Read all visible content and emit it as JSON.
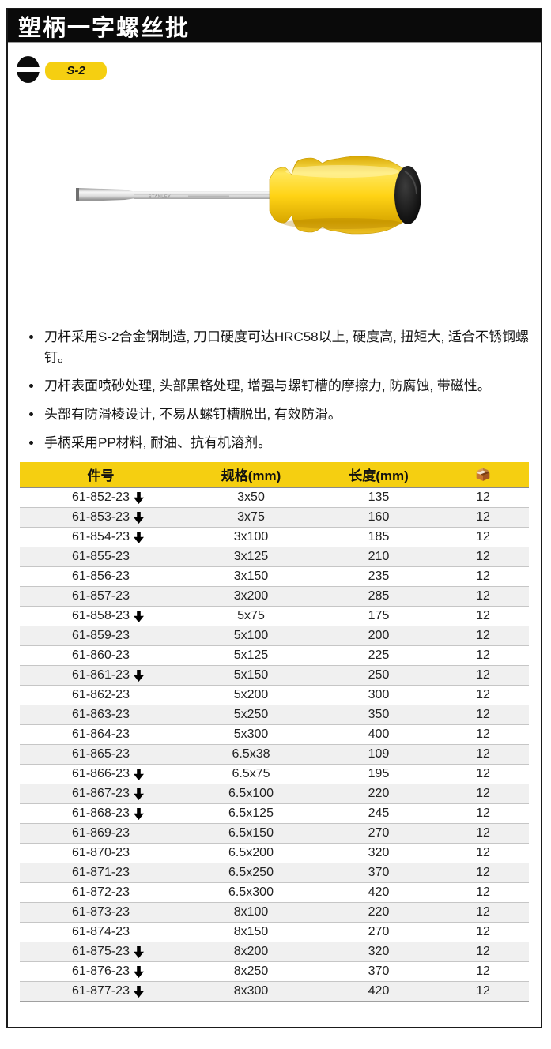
{
  "header": {
    "title": "塑柄一字螺丝批"
  },
  "badges": {
    "tip_icon": "slotted-tip-icon",
    "steel_grade": "S-2"
  },
  "product": {
    "shaft_marking": "STANLEY"
  },
  "features": [
    "刀杆采用S-2合金钢制造, 刀口硬度可达HRC58以上, 硬度高, 扭矩大, 适合不锈钢螺钉。",
    "刀杆表面喷砂处理, 头部黑铬处理, 增强与螺钉槽的摩擦力, 防腐蚀, 带磁性。",
    "头部有防滑棱设计, 不易从螺钉槽脱出, 有效防滑。",
    "手柄采用PP材料, 耐油、抗有机溶剂。"
  ],
  "table": {
    "headers": [
      "件号",
      "规格(mm)",
      "长度(mm)",
      "carton-qty-icon"
    ],
    "rows": [
      {
        "part": "61-852-23",
        "is_new": true,
        "spec": "3x50",
        "length": "135",
        "qty": "12"
      },
      {
        "part": "61-853-23",
        "is_new": true,
        "spec": "3x75",
        "length": "160",
        "qty": "12"
      },
      {
        "part": "61-854-23",
        "is_new": true,
        "spec": "3x100",
        "length": "185",
        "qty": "12"
      },
      {
        "part": "61-855-23",
        "is_new": false,
        "spec": "3x125",
        "length": "210",
        "qty": "12"
      },
      {
        "part": "61-856-23",
        "is_new": false,
        "spec": "3x150",
        "length": "235",
        "qty": "12"
      },
      {
        "part": "61-857-23",
        "is_new": false,
        "spec": "3x200",
        "length": "285",
        "qty": "12"
      },
      {
        "part": "61-858-23",
        "is_new": true,
        "spec": "5x75",
        "length": "175",
        "qty": "12"
      },
      {
        "part": "61-859-23",
        "is_new": false,
        "spec": "5x100",
        "length": "200",
        "qty": "12"
      },
      {
        "part": "61-860-23",
        "is_new": false,
        "spec": "5x125",
        "length": "225",
        "qty": "12"
      },
      {
        "part": "61-861-23",
        "is_new": true,
        "spec": "5x150",
        "length": "250",
        "qty": "12"
      },
      {
        "part": "61-862-23",
        "is_new": false,
        "spec": "5x200",
        "length": "300",
        "qty": "12"
      },
      {
        "part": "61-863-23",
        "is_new": false,
        "spec": "5x250",
        "length": "350",
        "qty": "12"
      },
      {
        "part": "61-864-23",
        "is_new": false,
        "spec": "5x300",
        "length": "400",
        "qty": "12"
      },
      {
        "part": "61-865-23",
        "is_new": false,
        "spec": "6.5x38",
        "length": "109",
        "qty": "12"
      },
      {
        "part": "61-866-23",
        "is_new": true,
        "spec": "6.5x75",
        "length": "195",
        "qty": "12"
      },
      {
        "part": "61-867-23",
        "is_new": true,
        "spec": "6.5x100",
        "length": "220",
        "qty": "12"
      },
      {
        "part": "61-868-23",
        "is_new": true,
        "spec": "6.5x125",
        "length": "245",
        "qty": "12"
      },
      {
        "part": "61-869-23",
        "is_new": false,
        "spec": "6.5x150",
        "length": "270",
        "qty": "12"
      },
      {
        "part": "61-870-23",
        "is_new": false,
        "spec": "6.5x200",
        "length": "320",
        "qty": "12"
      },
      {
        "part": "61-871-23",
        "is_new": false,
        "spec": "6.5x250",
        "length": "370",
        "qty": "12"
      },
      {
        "part": "61-872-23",
        "is_new": false,
        "spec": "6.5x300",
        "length": "420",
        "qty": "12"
      },
      {
        "part": "61-873-23",
        "is_new": false,
        "spec": "8x100",
        "length": "220",
        "qty": "12"
      },
      {
        "part": "61-874-23",
        "is_new": false,
        "spec": "8x150",
        "length": "270",
        "qty": "12"
      },
      {
        "part": "61-875-23",
        "is_new": true,
        "spec": "8x200",
        "length": "320",
        "qty": "12"
      },
      {
        "part": "61-876-23",
        "is_new": true,
        "spec": "8x250",
        "length": "370",
        "qty": "12"
      },
      {
        "part": "61-877-23",
        "is_new": true,
        "spec": "8x300",
        "length": "420",
        "qty": "12"
      }
    ]
  },
  "colors": {
    "accent_yellow": "#F5CF11",
    "titlebar_black": "#0A0A0A",
    "alt_row_gray": "#F0F0F0",
    "frame_border": "#1A1A1A"
  }
}
